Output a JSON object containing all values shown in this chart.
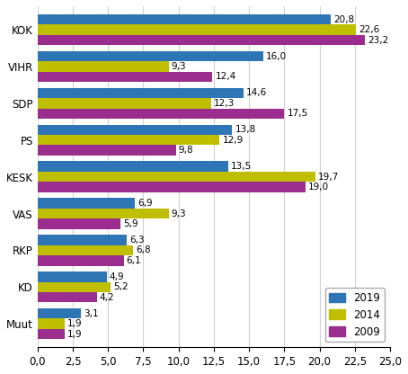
{
  "categories": [
    "Muut",
    "KD",
    "RKP",
    "VAS",
    "KESK",
    "PS",
    "SDP",
    "VIHR",
    "KOK"
  ],
  "values_2019": [
    3.1,
    4.9,
    6.3,
    6.9,
    13.5,
    13.8,
    14.6,
    16.0,
    20.8
  ],
  "values_2014": [
    1.9,
    5.2,
    6.8,
    9.3,
    19.7,
    12.9,
    12.3,
    9.3,
    22.6
  ],
  "values_2009": [
    1.9,
    4.2,
    6.1,
    5.9,
    19.0,
    9.8,
    17.5,
    12.4,
    23.2
  ],
  "labels_2019": [
    "3,1",
    "4,9",
    "6,3",
    "6,9",
    "13,5",
    "13,8",
    "14,6",
    "16,0",
    "20,8"
  ],
  "labels_2014": [
    "1,9",
    "5,2",
    "6,8",
    "9,3",
    "19,7",
    "12,9",
    "12,3",
    "9,3",
    "22,6"
  ],
  "labels_2009": [
    "1,9",
    "4,2",
    "6,1",
    "5,9",
    "19,0",
    "9,8",
    "17,5",
    "12,4",
    "23,2"
  ],
  "color_2019": "#2E75B6",
  "color_2014": "#BFBF00",
  "color_2009": "#9B2D8E",
  "xlim": [
    0,
    25
  ],
  "xticks": [
    0.0,
    2.5,
    5.0,
    7.5,
    10.0,
    12.5,
    15.0,
    17.5,
    20.0,
    22.5,
    25.0
  ],
  "xtick_labels": [
    "0,0",
    "2,5",
    "5,0",
    "7,5",
    "10,0",
    "12,5",
    "15,0",
    "17,5",
    "20,0",
    "22,5",
    "25,0"
  ],
  "legend_labels": [
    "2019",
    "2014",
    "2009"
  ],
  "bar_height": 0.28,
  "label_fontsize": 7.5,
  "tick_fontsize": 8.5,
  "background_color": "#ffffff"
}
